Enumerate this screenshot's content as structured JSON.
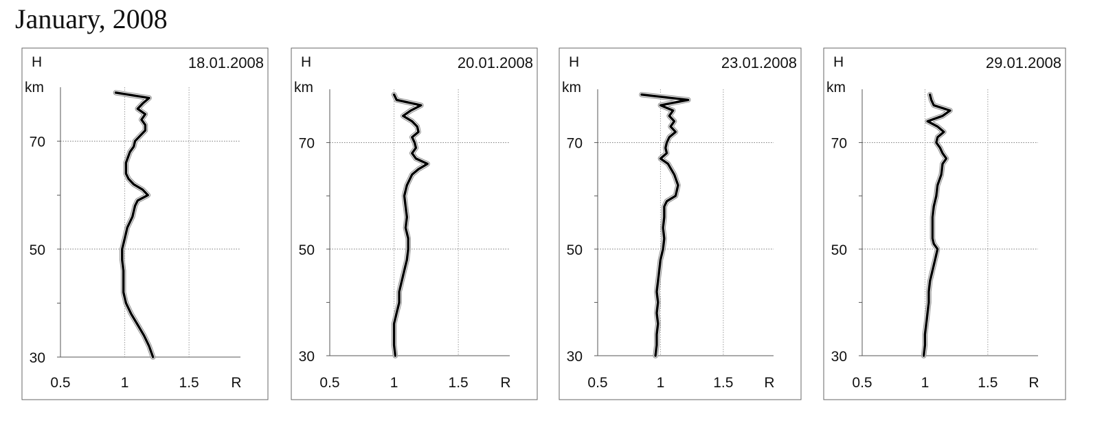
{
  "page_title": "January, 2008",
  "chart_data": [
    {
      "type": "line",
      "date": "18.01.2008",
      "ylabel_top": "H",
      "ylabel_unit": "km",
      "xlabel": "R",
      "xlim": [
        0.5,
        1.9
      ],
      "ylim": [
        30,
        80
      ],
      "xticks": [
        "0.5",
        "1",
        "1.5"
      ],
      "yticks": [
        "30",
        "50",
        "70"
      ],
      "grid": true,
      "series": [
        {
          "y": [
            30,
            32,
            34,
            36,
            38,
            40,
            42,
            44,
            46,
            48,
            50,
            52,
            54,
            56,
            58,
            59,
            60,
            61,
            62,
            63,
            64,
            66,
            68,
            69,
            70,
            71,
            72,
            73,
            74,
            75,
            76,
            77,
            78,
            79
          ],
          "x": [
            1.22,
            1.19,
            1.15,
            1.1,
            1.05,
            1.01,
            0.99,
            0.99,
            0.99,
            0.98,
            0.98,
            1.0,
            1.02,
            1.06,
            1.08,
            1.1,
            1.18,
            1.14,
            1.07,
            1.03,
            1.01,
            1.01,
            1.04,
            1.07,
            1.08,
            1.12,
            1.16,
            1.16,
            1.13,
            1.16,
            1.1,
            1.14,
            1.19,
            0.93
          ]
        }
      ]
    },
    {
      "type": "line",
      "date": "20.01.2008",
      "ylabel_top": "H",
      "ylabel_unit": "km",
      "xlabel": "R",
      "xlim": [
        0.5,
        1.9
      ],
      "ylim": [
        30,
        80
      ],
      "xticks": [
        "0.5",
        "1",
        "1.5"
      ],
      "yticks": [
        "30",
        "50",
        "70"
      ],
      "grid": true,
      "series": [
        {
          "y": [
            30,
            32,
            34,
            36,
            38,
            40,
            42,
            44,
            46,
            48,
            50,
            52,
            54,
            56,
            58,
            60,
            62,
            64,
            65,
            66,
            67,
            68,
            69,
            70,
            71,
            72,
            73,
            74,
            75,
            76,
            77,
            78,
            79
          ],
          "x": [
            1.01,
            1.0,
            1.0,
            1.0,
            1.02,
            1.04,
            1.04,
            1.06,
            1.08,
            1.1,
            1.11,
            1.11,
            1.09,
            1.1,
            1.09,
            1.08,
            1.1,
            1.14,
            1.19,
            1.26,
            1.17,
            1.14,
            1.17,
            1.16,
            1.14,
            1.19,
            1.18,
            1.14,
            1.07,
            1.13,
            1.21,
            1.02,
            1.0
          ]
        }
      ]
    },
    {
      "type": "line",
      "date": "23.01.2008",
      "ylabel_top": "H",
      "ylabel_unit": "km",
      "xlabel": "R",
      "xlim": [
        0.5,
        1.9
      ],
      "ylim": [
        30,
        80
      ],
      "xticks": [
        "0.5",
        "1",
        "1.5"
      ],
      "yticks": [
        "30",
        "50",
        "70"
      ],
      "grid": true,
      "series": [
        {
          "y": [
            30,
            32,
            34,
            36,
            38,
            40,
            42,
            44,
            46,
            48,
            50,
            52,
            54,
            56,
            58,
            59,
            60,
            62,
            64,
            66,
            67,
            68,
            69,
            70,
            71,
            72,
            73,
            74,
            75,
            76,
            77,
            78,
            79
          ],
          "x": [
            0.96,
            0.97,
            0.97,
            0.98,
            0.97,
            0.98,
            0.97,
            0.98,
            0.99,
            1.0,
            1.02,
            1.03,
            1.02,
            1.03,
            1.03,
            1.05,
            1.12,
            1.14,
            1.11,
            1.06,
            1.0,
            1.05,
            1.04,
            1.05,
            1.07,
            1.12,
            1.08,
            1.11,
            1.07,
            1.1,
            1.0,
            1.22,
            0.85
          ]
        }
      ]
    },
    {
      "type": "line",
      "date": "29.01.2008",
      "ylabel_top": "H",
      "ylabel_unit": "km",
      "xlabel": "R",
      "xlim": [
        0.5,
        1.9
      ],
      "ylim": [
        30,
        80
      ],
      "xticks": [
        "0.5",
        "1",
        "1.5"
      ],
      "yticks": [
        "30",
        "50",
        "70"
      ],
      "grid": true,
      "series": [
        {
          "y": [
            30,
            32,
            34,
            36,
            38,
            40,
            42,
            44,
            46,
            48,
            50,
            51,
            52,
            54,
            56,
            58,
            60,
            62,
            64,
            66,
            67,
            68,
            69,
            70,
            71,
            72,
            73,
            74,
            75,
            76,
            77,
            78,
            79
          ],
          "x": [
            0.99,
            1.0,
            1.0,
            1.01,
            1.02,
            1.03,
            1.03,
            1.04,
            1.06,
            1.08,
            1.1,
            1.07,
            1.06,
            1.06,
            1.06,
            1.07,
            1.09,
            1.1,
            1.13,
            1.14,
            1.17,
            1.14,
            1.12,
            1.09,
            1.1,
            1.15,
            1.1,
            1.02,
            1.14,
            1.2,
            1.07,
            1.05,
            1.04
          ]
        }
      ]
    }
  ]
}
